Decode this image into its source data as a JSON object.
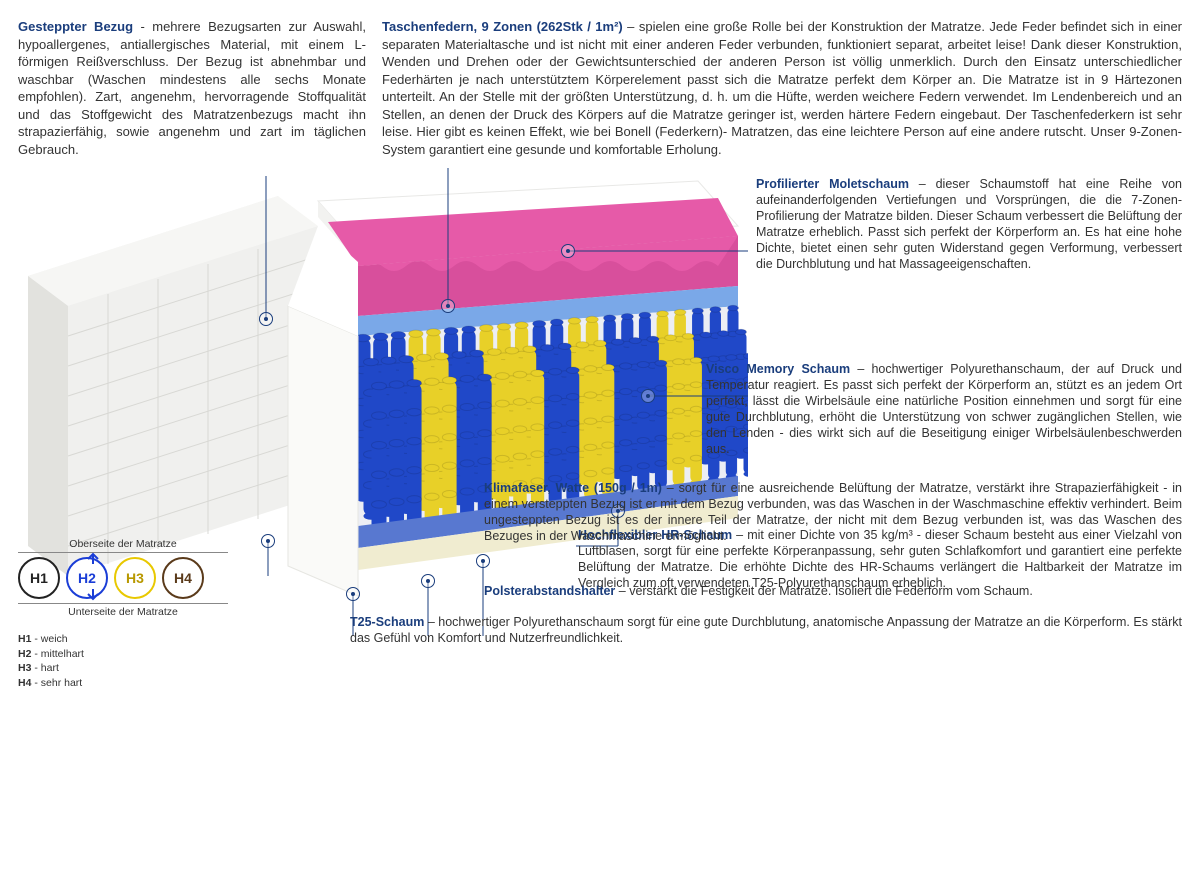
{
  "topLeft": {
    "heading": "Gesteppter Bezug",
    "text": " - mehrere Bezugsarten zur Auswahl, hypoallergenes, antiallergisches Material, mit einem L-förmigen Reißverschluss. Der Bezug ist abnehmbar und waschbar (Waschen mindestens alle sechs Monate empfohlen). Zart, angenehm, hervorragende Stoffqualität und das Stoffgewicht des Matratzenbezugs macht ihn strapazierfähig, sowie angenehm und zart im täglichen Gebrauch."
  },
  "topRight": {
    "heading": "Taschenfedern, 9 Zonen (262Stk / 1m²)",
    "text": " – spielen eine große Rolle bei der Konstruktion der Matratze. Jede Feder befindet sich in einer separaten Materialtasche und ist nicht mit einer anderen Feder verbunden, funktioniert separat, arbeitet leise! Dank dieser Konstruktion, Wenden und Drehen oder der Gewichtsunterschied der anderen Person ist völlig unmerklich. Durch den Einsatz unterschiedlicher Federhärten je nach unterstütztem Körperelement passt sich die Matratze perfekt dem Körper an. Die Matratze ist in 9 Härtezonen unterteilt. An der Stelle mit der größten Unterstützung, d. h. um die Hüfte, werden weichere Federn verwendet. Im Lendenbereich und an Stellen, an denen der Druck des Körpers auf die Matratze geringer ist, werden härtere Federn eingebaut. Der Taschenfederkern ist sehr leise. Hier gibt es keinen Effekt, wie bei Bonell (Federkern)- Matratzen, das eine leichtere Person auf eine andere rutscht. Unser 9-Zonen-System garantiert eine gesunde und komfortable Erholung."
  },
  "r1": {
    "heading": "Profilierter Moletschaum",
    "text": " – dieser Schaumstoff hat eine Reihe von aufeinanderfolgenden Vertiefungen und Vorsprüngen, die die 7-Zonen-Profilierung der Matratze bilden. Dieser Schaum verbessert die Belüftung der Matratze erheblich. Passt sich perfekt der Körperform an. Es hat eine hohe Dichte, bietet einen sehr guten Widerstand gegen Verformung, verbessert die Durchblutung und hat Massageeigenschaften."
  },
  "r2": {
    "heading": "Visco Memory Schaum",
    "text": " – hochwertiger Polyurethanschaum, der auf Druck und Temperatur reagiert. Es passt sich perfekt der Körperform an, stützt es an jedem Ort perfekt, lässt die Wirbelsäule eine natürliche Position einnehmen und sorgt für eine gute Durchblutung, erhöht die Unterstützung von schwer zugänglichen Stellen, wie den Lenden - dies wirkt sich auf die Beseitigung einiger Wirbelsäulenbeschwerden aus."
  },
  "r3": {
    "heading": "Hochflexibler HR-Schaum",
    "text": " – mit einer Dichte von 35 kg/m³ - dieser Schaum besteht aus einer Vielzahl von Luftblasen, sorgt für eine perfekte Körperanpassung, sehr guten Schlafkomfort und garantiert eine perfekte Belüftung der Matratze. Die erhöhte Dichte des HR-Schaums verlängert die Haltbarkeit der Matratze im Vergleich zum oft verwendeten T25-Polyurethanschaum erheblich."
  },
  "b1": {
    "heading": "Klimafaser, Watte (150g / 1m)",
    "text": " – sorgt für eine ausreichende Belüftung der Matratze, verstärkt ihre Strapazierfähigkeit - in einem versteppten Bezug ist er mit dem Bezug verbunden, was das Waschen in der Waschmaschine effektiv verhindert. Beim ungesteppten Bezug ist es der innere Teil der Matratze, der nicht mit dem Bezug verbunden ist, was das Waschen des Bezuges in der Waschmaschine ermöglicht."
  },
  "b2": {
    "heading": "Polsterabstandshalter",
    "text": " – verstärkt die Festigkeit der Matratze. Isoliert die Federform vom Schaum."
  },
  "b3": {
    "heading": "T25-Schaum",
    "text": " – hochwertiger Polyurethanschaum sorgt für eine gute Durchblutung, anatomische Anpassung der Matratze an die Körperform. Es stärkt das Gefühl von Komfort und Nutzerfreundlichkeit."
  },
  "legend": {
    "top": "Oberseite der Matratze",
    "bottom": "Unterseite der Matratze",
    "items": [
      {
        "label": "H1",
        "border": "#222222",
        "fill": "#ffffff",
        "color": "#222"
      },
      {
        "label": "H2",
        "border": "#1a3dd6",
        "fill": "#ffffff",
        "color": "#1a3dd6"
      },
      {
        "label": "H3",
        "border": "#e8c800",
        "fill": "#ffffff",
        "color": "#b89800"
      },
      {
        "label": "H4",
        "border": "#5a3a1a",
        "fill": "#ffffff",
        "color": "#5a3a1a"
      }
    ],
    "defs": [
      {
        "k": "H1",
        "v": " - weich"
      },
      {
        "k": "H2",
        "v": " - mittelhart"
      },
      {
        "k": "H3",
        "v": " - hart"
      },
      {
        "k": "H4",
        "v": " - sehr hart"
      }
    ],
    "arrow_color": "#1a3dd6"
  },
  "mattress": {
    "cover_color": "#f0f0ee",
    "cover_shadow": "#d8d8d4",
    "top_white": "#ffffff",
    "foam_pink": "#e65aa8",
    "foam_pink_dark": "#c23a86",
    "foam_blue_light": "#7aa8e8",
    "spring_blue": "#2048c8",
    "spring_yellow": "#e8d028",
    "spring_shadow_blue": "#0e2a88",
    "spring_shadow_yellow": "#b89c00",
    "base_blue": "#5878d0",
    "base_cream": "#f0ecd0",
    "side_white": "#fafaf8",
    "line_color": "#1a3d7c"
  }
}
